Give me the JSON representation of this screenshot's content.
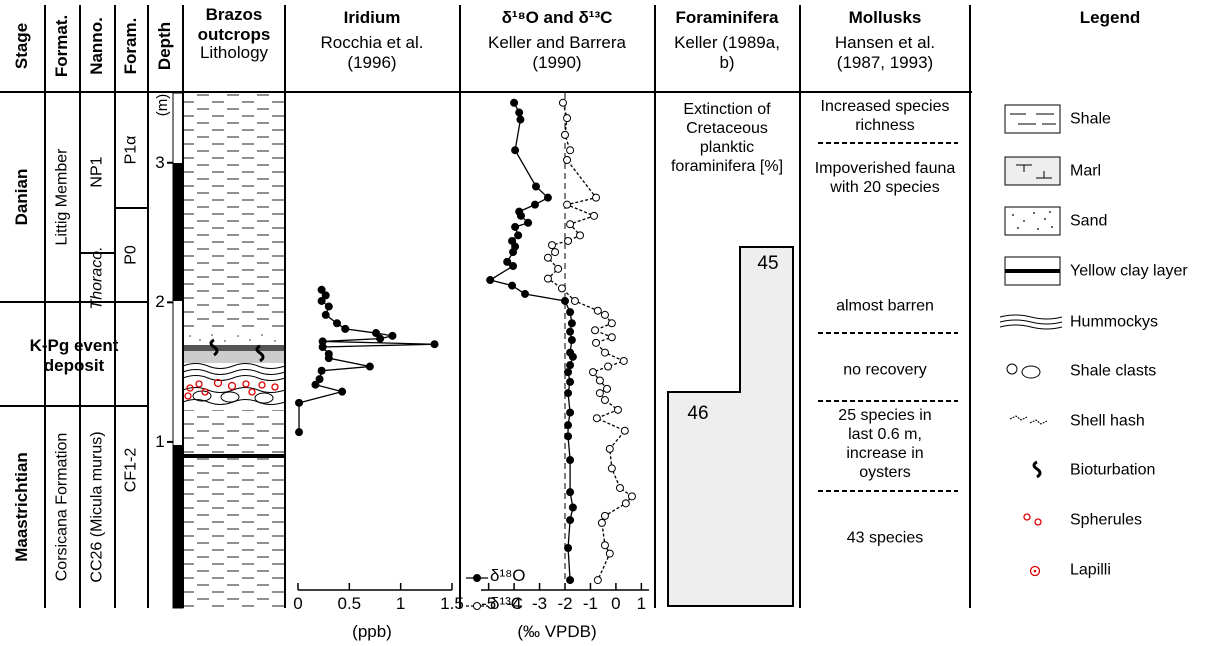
{
  "headers": {
    "stage": "Stage",
    "formation": "Format.",
    "nanno": "Nanno.",
    "foram": "Foram.",
    "depth": "Depth",
    "lithology": {
      "title": "Brazos outcrops",
      "subtitle": "Lithology"
    },
    "foraminifera": {
      "title": "Foraminifera",
      "subtitle": "Keller (1989a, b)"
    },
    "mollusks": {
      "title": "Mollusks",
      "subtitle": "Hansen et al. (1987, 1993)"
    },
    "legend": "Legend"
  },
  "stages": [
    "Danian",
    "K-Pg event deposit",
    "Maastrichtian"
  ],
  "formations": [
    "Littig Member",
    "Corsicana Formation"
  ],
  "nanno_zones": [
    "NP1",
    "Thoraco.",
    "CC26 (Micula murus)"
  ],
  "foram_zones": [
    "P1α",
    "P0",
    "CF1-2"
  ],
  "depth_axis": {
    "label": "(m)",
    "ylim": [
      -0.19,
      3.5
    ],
    "yticks": [
      1,
      2,
      3
    ]
  },
  "chart_data": [
    {
      "type": "line",
      "title": "Iridium",
      "subtitle": "Rocchia et al. (1996)",
      "xlabel": "(ppb)",
      "xlim": [
        0,
        1.5
      ],
      "xticks": [
        0,
        0.5,
        1,
        1.5
      ],
      "series": [
        {
          "color": "#000000",
          "marker": "filled",
          "dashed": false,
          "depth": [
            2.09,
            2.05,
            2.01,
            1.97,
            1.91,
            1.85,
            1.81,
            1.78,
            1.76,
            1.74,
            1.72,
            1.7,
            1.68,
            1.63,
            1.6,
            1.54,
            1.51,
            1.45,
            1.41,
            1.36,
            1.28,
            1.07
          ],
          "values": [
            0.23,
            0.27,
            0.23,
            0.3,
            0.27,
            0.38,
            0.46,
            0.76,
            0.92,
            0.8,
            0.24,
            1.33,
            0.24,
            0.3,
            0.3,
            0.7,
            0.23,
            0.21,
            0.17,
            0.43,
            0.01,
            0.01
          ]
        }
      ]
    },
    {
      "type": "line",
      "title": "δ¹⁸O and δ¹³C",
      "subtitle": "Keller and Barrera (1990)",
      "xlabel": "(‰ VPDB)",
      "xlim": [
        -5.3,
        1.3
      ],
      "xticks": [
        -5,
        -4,
        -3,
        -2,
        -1,
        0,
        1
      ],
      "ref_line": -2,
      "series": [
        {
          "name": "δ¹⁸O",
          "color": "#000000",
          "marker": "filled",
          "dashed": false,
          "depth": [
            3.43,
            3.36,
            3.31,
            3.09,
            2.83,
            2.75,
            2.7,
            2.65,
            2.62,
            2.57,
            2.54,
            2.48,
            2.44,
            2.4,
            2.36,
            2.29,
            2.26,
            2.16,
            2.12,
            2.06,
            2.01,
            1.93,
            1.85,
            1.79,
            1.73,
            1.64,
            1.61,
            1.55,
            1.5,
            1.43,
            1.35,
            1.21,
            1.12,
            1.04,
            0.87,
            0.64,
            0.53,
            0.44,
            0.24,
            0.01
          ],
          "values": [
            -4.0,
            -3.8,
            -3.75,
            -3.96,
            -3.14,
            -2.67,
            -3.18,
            -3.8,
            -3.73,
            -3.45,
            -3.96,
            -3.84,
            -4.08,
            -3.96,
            -4.04,
            -4.27,
            -4.04,
            -4.94,
            -4.08,
            -3.57,
            -2.0,
            -1.8,
            -1.73,
            -1.8,
            -1.73,
            -1.8,
            -1.69,
            -1.8,
            -1.88,
            -1.8,
            -1.88,
            -1.8,
            -1.88,
            -1.88,
            -1.8,
            -1.8,
            -1.69,
            -1.8,
            -1.88,
            -1.8
          ]
        },
        {
          "name": "δ¹³C",
          "color": "#000000",
          "marker": "open",
          "dashed": true,
          "depth": [
            3.43,
            3.32,
            3.2,
            3.09,
            3.02,
            2.75,
            2.7,
            2.62,
            2.56,
            2.48,
            2.44,
            2.41,
            2.36,
            2.32,
            2.24,
            2.17,
            2.1,
            2.01,
            1.94,
            1.91,
            1.85,
            1.8,
            1.75,
            1.71,
            1.64,
            1.58,
            1.54,
            1.5,
            1.44,
            1.38,
            1.35,
            1.3,
            1.23,
            1.17,
            1.08,
            0.95,
            0.81,
            0.67,
            0.61,
            0.56,
            0.47,
            0.42,
            0.26,
            0.2,
            0.01
          ],
          "values": [
            -2.08,
            -1.92,
            -2.0,
            -1.8,
            -1.92,
            -0.78,
            -1.92,
            -0.86,
            -1.8,
            -1.41,
            -1.88,
            -2.51,
            -2.39,
            -2.67,
            -2.27,
            -2.67,
            -2.12,
            -1.61,
            -0.71,
            -0.43,
            -0.16,
            -0.82,
            -0.16,
            -0.78,
            -0.43,
            0.31,
            -0.31,
            -0.9,
            -0.63,
            -0.35,
            -0.63,
            -0.43,
            0.08,
            -0.75,
            0.35,
            -0.24,
            -0.16,
            0.16,
            0.63,
            0.39,
            -0.43,
            -0.55,
            -0.43,
            -0.24,
            -0.71
          ]
        }
      ]
    }
  ],
  "foraminifera": {
    "note": "Extinction of Cretaceous planktic foraminifera [%]",
    "labels": [
      45,
      46
    ]
  },
  "mollusks": [
    "Increased species richness",
    "Impoverished fauna with 20 species",
    "almost barren",
    "no recovery",
    "25 species in last 0.6 m, increase in oysters",
    "43 species"
  ],
  "legend": [
    "Shale",
    "Marl",
    "Sand",
    "Yellow clay layer",
    "Hummockys",
    "Shale clasts",
    "Shell hash",
    "Bioturbation",
    "Spherules",
    "Lapilli"
  ]
}
